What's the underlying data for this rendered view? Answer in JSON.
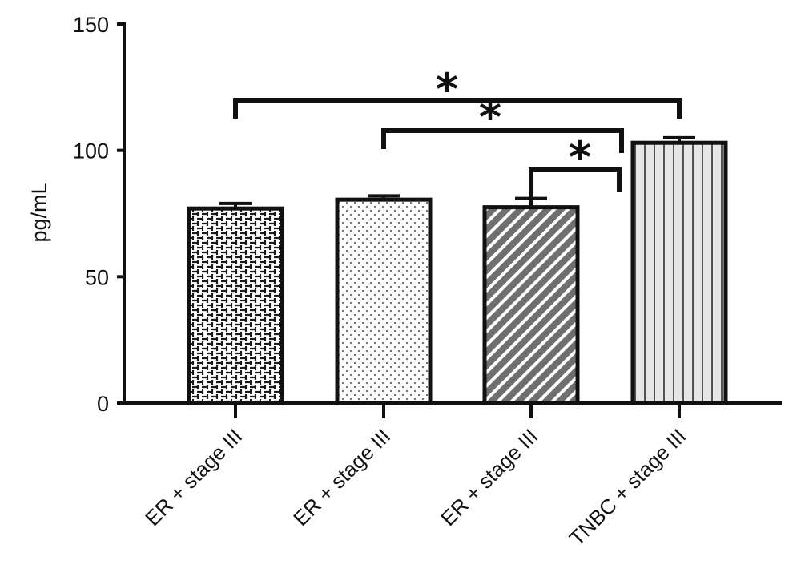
{
  "chart_data": {
    "type": "bar",
    "ylabel": "pg/mL",
    "ylim": [
      0,
      150
    ],
    "yticks": [
      "0",
      "50",
      "100",
      "150"
    ],
    "categories": [
      "ER + stage III",
      "ER + stage III",
      "ER + stage III",
      "TNBC + stage III"
    ],
    "values": [
      77,
      80.5,
      77.5,
      103
    ],
    "errors": [
      2,
      1.5,
      3.5,
      2
    ],
    "patterns": [
      "brick",
      "dots",
      "diagonal",
      "vertical"
    ],
    "significance": [
      {
        "from": 0,
        "to": 3,
        "label": "*"
      },
      {
        "from": 1,
        "to": 3,
        "label": "*"
      },
      {
        "from": 2,
        "to": 3,
        "label": "*"
      }
    ],
    "grid": false,
    "legend": "none"
  }
}
